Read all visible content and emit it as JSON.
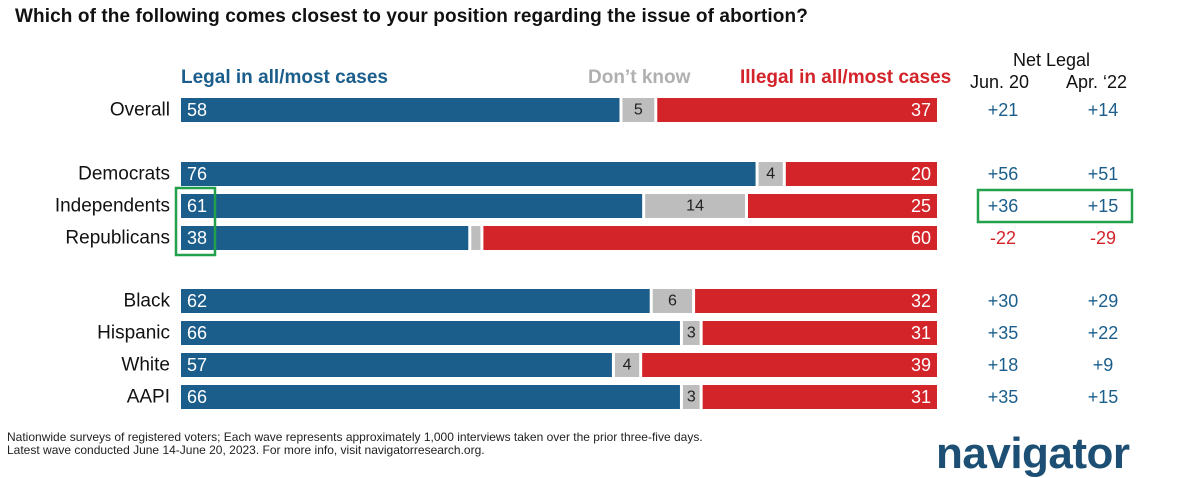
{
  "title": "Which of the following comes closest to your position regarding the issue of abortion?",
  "legend": {
    "legal": "Legal in all/most cases",
    "dont_know": "Don’t know",
    "illegal": "Illegal in all/most cases"
  },
  "net": {
    "title": "Net Legal",
    "col_jun": "Jun. 20",
    "col_apr": "Apr. ‘22"
  },
  "colors": {
    "legal": "#1b5e8c",
    "dont_know": "#bdbdbd",
    "illegal": "#d3242a",
    "highlight": "#23a04b",
    "net_positive": "#1b5e8c",
    "net_negative": "#d3242a"
  },
  "chart_data": {
    "type": "bar",
    "stacked": true,
    "orientation": "horizontal",
    "categories": [
      "Overall",
      "Democrats",
      "Independents",
      "Republicans",
      "Black",
      "Hispanic",
      "White",
      "AAPI"
    ],
    "series": [
      {
        "name": "Legal in all/most cases",
        "values": [
          58,
          76,
          61,
          38,
          62,
          66,
          57,
          66
        ],
        "labels": [
          "58",
          "76",
          "61",
          "38",
          "62",
          "66",
          "57",
          "66"
        ]
      },
      {
        "name": "Don’t know",
        "values": [
          5,
          4,
          14,
          2,
          6,
          3,
          4,
          3
        ],
        "labels": [
          "5",
          "4",
          "14",
          "",
          "6",
          "3",
          "4",
          "3"
        ]
      },
      {
        "name": "Illegal in all/most cases",
        "values": [
          37,
          20,
          25,
          60,
          32,
          31,
          39,
          31
        ],
        "labels": [
          "37",
          "20",
          "25",
          "60",
          "32",
          "31",
          "39",
          "31"
        ]
      }
    ],
    "net_legal": {
      "jun_20": [
        "+21",
        "+56",
        "+36",
        "-22",
        "+30",
        "+35",
        "+18",
        "+35"
      ],
      "apr_22": [
        "+14",
        "+51",
        "+15",
        "-29",
        "+29",
        "+22",
        "+9",
        "+15"
      ]
    },
    "highlights": {
      "legal_values": [
        "Independents",
        "Republicans"
      ],
      "net_row": "Independents"
    }
  },
  "footnote": {
    "line1": "Nationwide surveys of registered voters; Each wave represents approximately 1,000 interviews taken over the prior three-five days.",
    "line2": "Latest wave conducted June 14-June 20, 2023. For more info, visit navigatorresearch.org."
  },
  "logo": "navigator"
}
